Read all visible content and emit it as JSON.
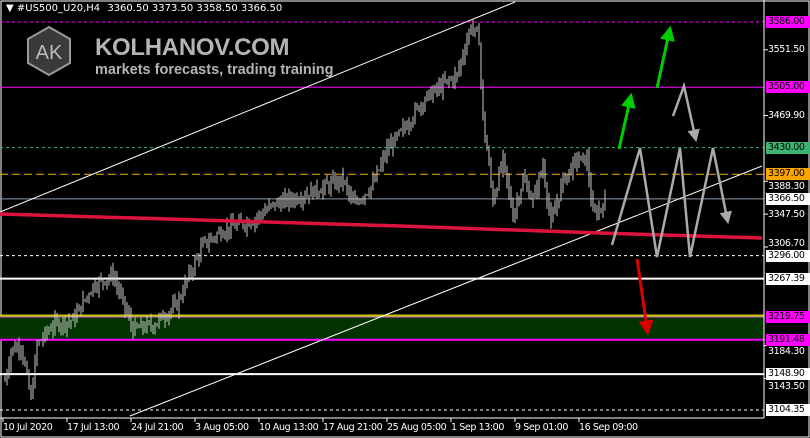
{
  "header": {
    "symbol": "#US500_U20,H4",
    "ohlc": "3360.50 3373.50 3358.50 3366.50"
  },
  "watermark": {
    "monogram": "AK",
    "brand": "KOLHANOV.COM",
    "tagline": "markets forecasts, trading training"
  },
  "chart_data": {
    "type": "line",
    "symbol": "#US500_U20",
    "timeframe": "H4",
    "ylim": [
      3104.35,
      3586.0
    ],
    "y_ticks": [
      "3551.50",
      "3469.90",
      "3388.30",
      "3347.50",
      "3306.70",
      "3184.30",
      "3143.50"
    ],
    "x_ticks": [
      "10 Jul 2020",
      "17 Jul 13:00",
      "24 Jul 21:00",
      "3 Aug 05:00",
      "10 Aug 13:00",
      "17 Aug 21:00",
      "25 Aug 05:00",
      "1 Sep 13:00",
      "9 Sep 01:00",
      "16 Sep 09:00"
    ],
    "price_path_bar_price": [
      [
        0,
        3141
      ],
      [
        3,
        3179
      ],
      [
        8,
        3185
      ],
      [
        13,
        3117
      ],
      [
        16,
        3185
      ],
      [
        24,
        3210
      ],
      [
        34,
        3216
      ],
      [
        44,
        3259
      ],
      [
        54,
        3272
      ],
      [
        64,
        3204
      ],
      [
        74,
        3210
      ],
      [
        86,
        3235
      ],
      [
        91,
        3266
      ],
      [
        99,
        3309
      ],
      [
        109,
        3328
      ],
      [
        124,
        3340
      ],
      [
        134,
        3359
      ],
      [
        149,
        3371
      ],
      [
        169,
        3390
      ],
      [
        174,
        3359
      ],
      [
        184,
        3384
      ],
      [
        191,
        3427
      ],
      [
        199,
        3452
      ],
      [
        209,
        3489
      ],
      [
        219,
        3508
      ],
      [
        226,
        3520
      ],
      [
        233,
        3582
      ],
      [
        237,
        3564
      ],
      [
        239,
        3464
      ],
      [
        241,
        3427
      ],
      [
        244,
        3365
      ],
      [
        249,
        3415
      ],
      [
        254,
        3346
      ],
      [
        259,
        3390
      ],
      [
        264,
        3365
      ],
      [
        269,
        3408
      ],
      [
        273,
        3334
      ],
      [
        279,
        3390
      ],
      [
        286,
        3415
      ],
      [
        291,
        3415
      ],
      [
        294,
        3346
      ],
      [
        297,
        3353
      ],
      [
        301,
        3366
      ]
    ],
    "levels": [
      {
        "price": "3586.00",
        "color": "#ff00ff",
        "style": "dashed"
      },
      {
        "price": "3505.00",
        "color": "#ff00ff",
        "style": "solid"
      },
      {
        "price": "3430.00",
        "color": "#3cb371",
        "style": "dashed"
      },
      {
        "price": "3397.00",
        "color": "#ffa500",
        "style": "dashed"
      },
      {
        "price": "3366.50",
        "color": "#ffffff",
        "style": "solid"
      },
      {
        "price": "3296.00",
        "color": "#ffffff",
        "style": "dashed"
      },
      {
        "price": "3267.39",
        "color": "#ffffff",
        "style": "solid"
      },
      {
        "price": "3219.75",
        "color": "#ff00ff",
        "style": "solid"
      },
      {
        "price": "3191.48",
        "color": "#ff00ff",
        "style": "solid"
      },
      {
        "price": "3148.90",
        "color": "#ffffff",
        "style": "solid"
      },
      {
        "price": "3104.35",
        "color": "#ffffff",
        "style": "dashed"
      }
    ],
    "support_zone": [
      3191.48,
      3219.75
    ],
    "colors": {
      "background": "#000000",
      "bars": "#c8c8c8",
      "moving_average": "#dc143c",
      "zone": "#003300",
      "bull_arrow": "#00cc00",
      "bear_arrow": "#dd0000",
      "scenario": "#aaaaaa"
    }
  }
}
